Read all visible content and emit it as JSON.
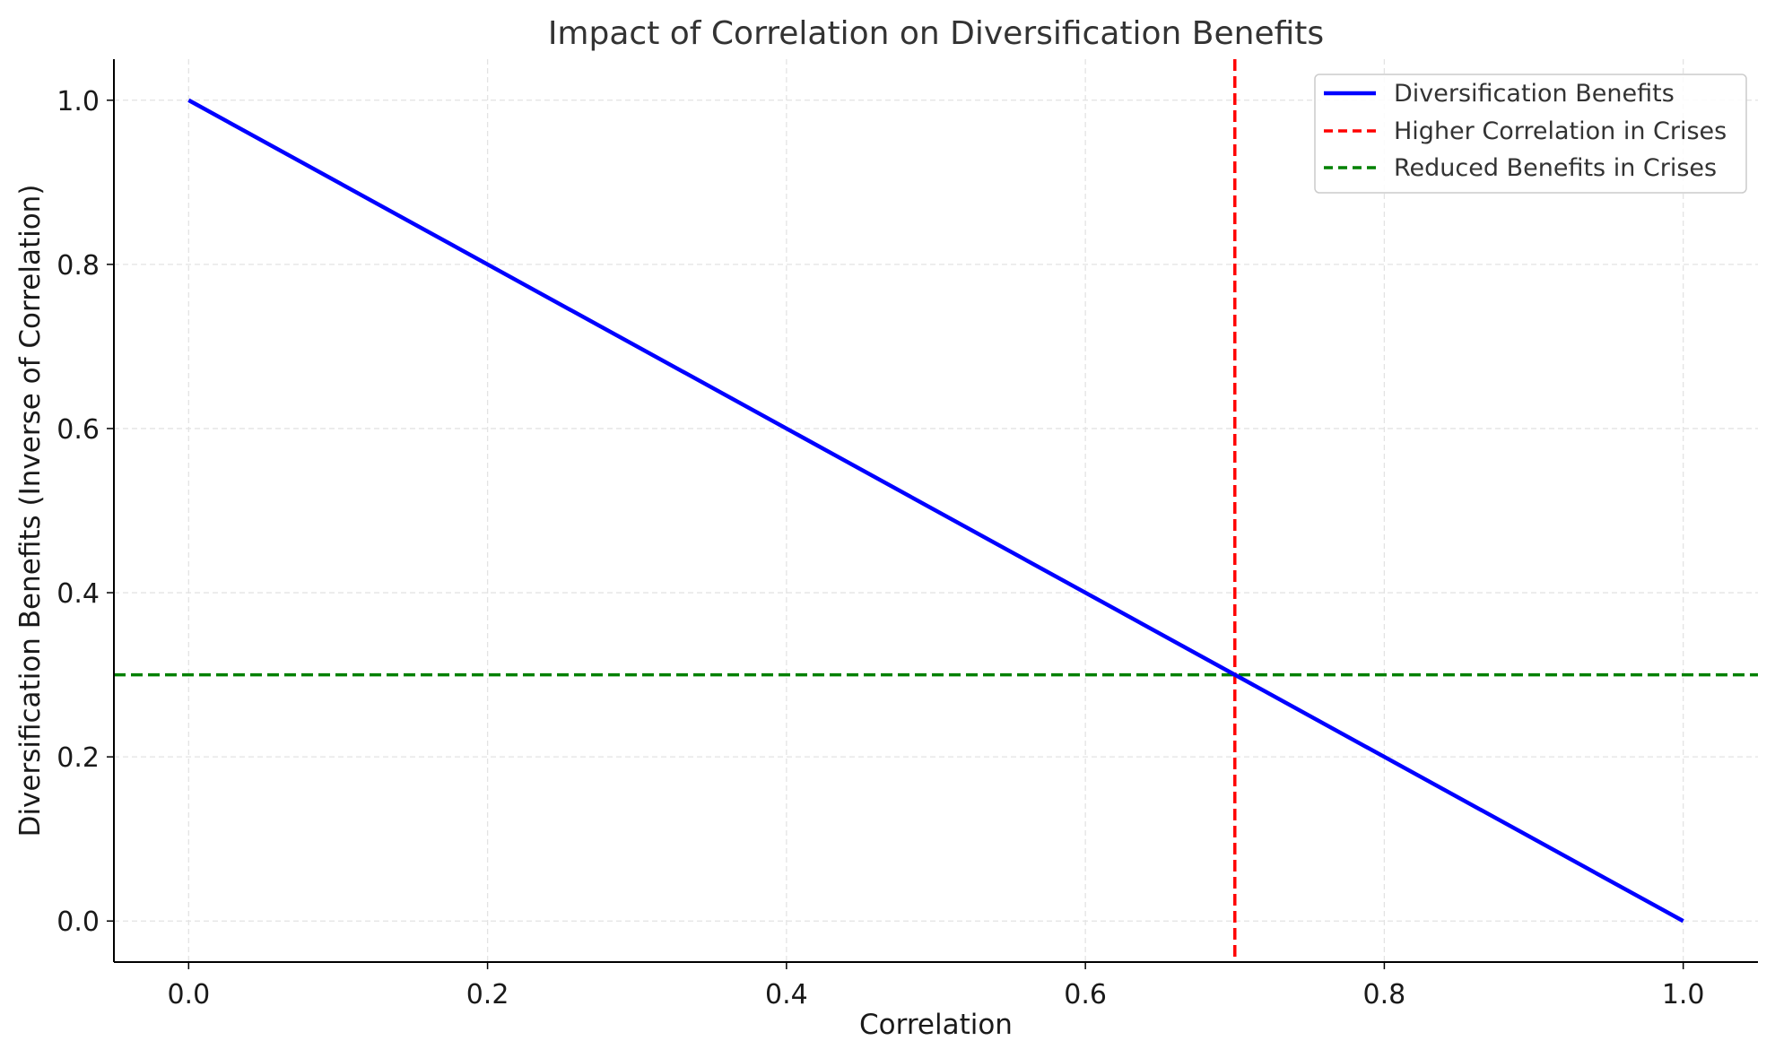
{
  "chart_data": {
    "type": "line",
    "title": "Impact of Correlation on Diversification Benefits",
    "xlabel": "Correlation",
    "ylabel": "Diversification Benefits (Inverse of Correlation)",
    "xlim": [
      -0.05,
      1.05
    ],
    "ylim": [
      -0.05,
      1.05
    ],
    "x_ticks": [
      "0.0",
      "0.2",
      "0.4",
      "0.6",
      "0.8",
      "1.0"
    ],
    "y_ticks": [
      "0.0",
      "0.2",
      "0.4",
      "0.6",
      "0.8",
      "1.0"
    ],
    "grid": true,
    "legend_position": "top-right",
    "series": [
      {
        "name": "Diversification Benefits",
        "color": "#0000ff",
        "style": "solid",
        "x": [
          0.0,
          1.0
        ],
        "y": [
          1.0,
          0.0
        ]
      }
    ],
    "reference_lines": [
      {
        "name": "Higher Correlation in Crises",
        "orientation": "vertical",
        "value": 0.7,
        "color": "#ff0000",
        "style": "dashed"
      },
      {
        "name": "Reduced Benefits in Crises",
        "orientation": "horizontal",
        "value": 0.3,
        "color": "#008000",
        "style": "dashed"
      }
    ]
  }
}
